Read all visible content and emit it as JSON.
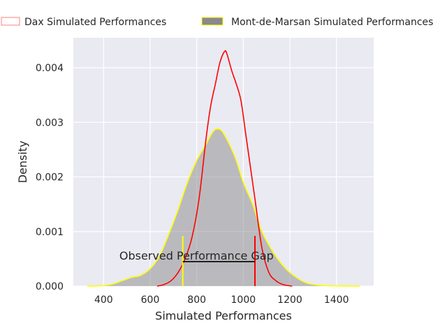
{
  "chart_data": {
    "type": "area",
    "xlabel": "Simulated Performances",
    "ylabel": "Density",
    "xlim": [
      270,
      1560
    ],
    "ylim": [
      0,
      0.00455
    ],
    "grid": true,
    "legend_placement": "top",
    "x_ticks": [
      400,
      600,
      800,
      1000,
      1200,
      1400
    ],
    "x_tick_labels": [
      "400",
      "600",
      "800",
      "1000",
      "1200",
      "1400"
    ],
    "y_ticks": [
      0,
      0.001,
      0.002,
      0.003,
      0.004
    ],
    "y_tick_labels": [
      "0.000",
      "0.001",
      "0.002",
      "0.003",
      "0.004"
    ],
    "series": [
      {
        "name": "Dax Simulated Performances",
        "style": "line",
        "color": "#ff0000",
        "points": [
          [
            630,
            0
          ],
          [
            660,
            3e-05
          ],
          [
            690,
            0.0001
          ],
          [
            720,
            0.00025
          ],
          [
            750,
            0.0005
          ],
          [
            780,
            0.0009
          ],
          [
            810,
            0.0016
          ],
          [
            840,
            0.0027
          ],
          [
            860,
            0.0033
          ],
          [
            880,
            0.0037
          ],
          [
            900,
            0.0041
          ],
          [
            920,
            0.0043
          ],
          [
            930,
            0.00425
          ],
          [
            950,
            0.00395
          ],
          [
            970,
            0.0037
          ],
          [
            990,
            0.0034
          ],
          [
            1010,
            0.0028
          ],
          [
            1030,
            0.0022
          ],
          [
            1050,
            0.0016
          ],
          [
            1080,
            0.0007
          ],
          [
            1110,
            0.00025
          ],
          [
            1140,
            0.0001
          ],
          [
            1170,
            3e-05
          ],
          [
            1210,
            0
          ]
        ]
      },
      {
        "name": "Mont-de-Marsan Simulated Performances",
        "style": "filled",
        "color": "#ffff00",
        "fill": "#8a8a8a",
        "points": [
          [
            330,
            0
          ],
          [
            400,
            1e-05
          ],
          [
            440,
            4e-05
          ],
          [
            480,
            0.0001
          ],
          [
            520,
            0.00016
          ],
          [
            560,
            0.0002
          ],
          [
            600,
            0.00032
          ],
          [
            640,
            0.00055
          ],
          [
            680,
            0.00095
          ],
          [
            720,
            0.0014
          ],
          [
            760,
            0.0019
          ],
          [
            800,
            0.0023
          ],
          [
            840,
            0.0026
          ],
          [
            870,
            0.00283
          ],
          [
            890,
            0.00288
          ],
          [
            910,
            0.00283
          ],
          [
            940,
            0.0026
          ],
          [
            970,
            0.0023
          ],
          [
            1000,
            0.0019
          ],
          [
            1040,
            0.0015
          ],
          [
            1080,
            0.001
          ],
          [
            1120,
            0.00068
          ],
          [
            1160,
            0.00043
          ],
          [
            1200,
            0.00025
          ],
          [
            1260,
            8e-05
          ],
          [
            1320,
            2e-05
          ],
          [
            1400,
            5e-06
          ],
          [
            1500,
            0
          ]
        ]
      }
    ],
    "annotation": {
      "text": "Observed Performance Gap",
      "gap_from": 740,
      "gap_to": 1050,
      "gap_level": 0.00045,
      "marker_top": 0.00092,
      "left_marker_color": "#ffff00",
      "right_marker_color": "#ff0000"
    },
    "colors": {
      "plot_bg": "#eaeaf2",
      "grid": "#ffffff"
    }
  }
}
